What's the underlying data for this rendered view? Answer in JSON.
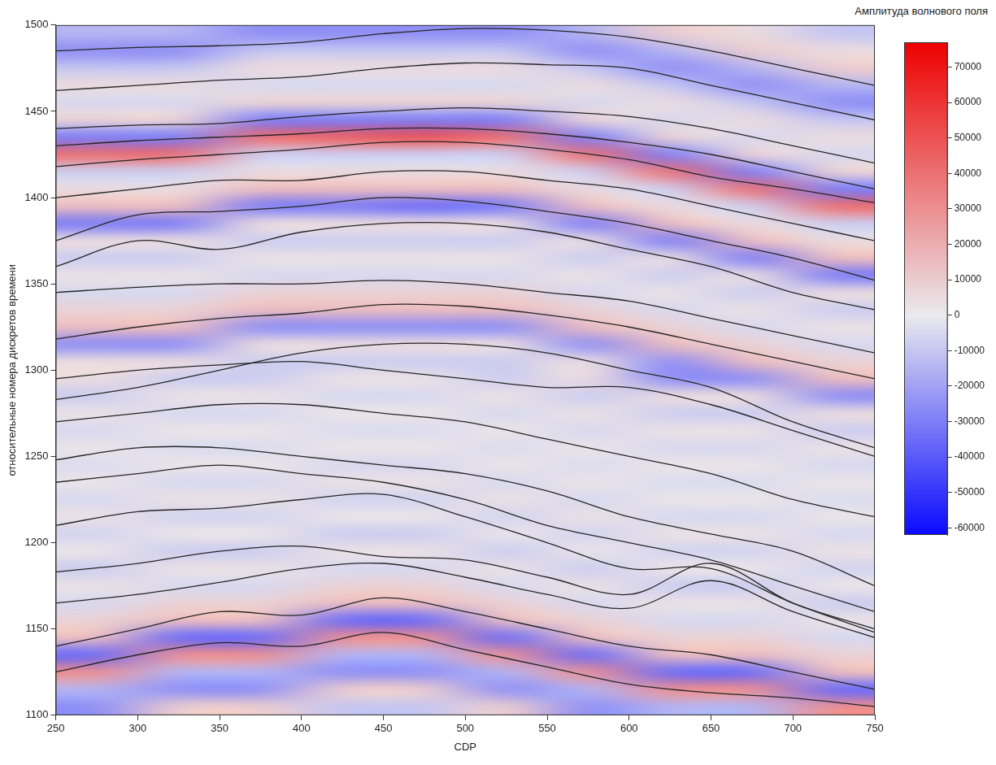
{
  "chart_data": {
    "type": "heatmap",
    "x_label": "CDP",
    "y_label": "относительные номера дискретов времени",
    "xlim": [
      250,
      750
    ],
    "xticks": [
      250,
      300,
      350,
      400,
      450,
      500,
      550,
      600,
      650,
      700,
      750
    ],
    "ylim": [
      1100,
      1500
    ],
    "yticks": [
      1100,
      1150,
      1200,
      1250,
      1300,
      1350,
      1400,
      1450,
      1500
    ],
    "grid": false,
    "cells": {
      "x_edges": [
        250,
        300,
        350,
        400,
        450,
        500,
        550,
        600,
        650,
        700,
        750
      ],
      "y_edges": [
        1100,
        1110,
        1120,
        1130,
        1140,
        1150,
        1160,
        1170,
        1180,
        1190,
        1200,
        1210,
        1220,
        1230,
        1240,
        1250,
        1260,
        1270,
        1280,
        1290,
        1300,
        1310,
        1320,
        1330,
        1340,
        1350,
        1360,
        1370,
        1380,
        1390,
        1400,
        1410,
        1420,
        1430,
        1440,
        1450,
        1460,
        1470,
        1480,
        1490,
        1500
      ],
      "values": [
        [
          -25000,
          10000,
          10000,
          -10000,
          -10000,
          10000,
          -25000,
          -15000,
          -15000,
          30000
        ],
        [
          -15000,
          -25000,
          -25000,
          10000,
          10000,
          -25000,
          -15000,
          30000,
          30000,
          -35000
        ],
        [
          30000,
          -15000,
          -15000,
          -25000,
          -25000,
          -15000,
          30000,
          -35000,
          -35000,
          15000
        ],
        [
          -35000,
          30000,
          30000,
          -15000,
          -15000,
          30000,
          -35000,
          15000,
          15000,
          8000
        ],
        [
          15000,
          -35000,
          -35000,
          30000,
          30000,
          -35000,
          15000,
          8000,
          8000,
          -5000
        ],
        [
          8000,
          15000,
          15000,
          -35000,
          -35000,
          15000,
          8000,
          -5000,
          -5000,
          3000
        ],
        [
          -5000,
          8000,
          8000,
          15000,
          15000,
          8000,
          -5000,
          3000,
          3000,
          -8000
        ],
        [
          3000,
          -5000,
          -5000,
          8000,
          8000,
          -5000,
          3000,
          -8000,
          -8000,
          2000
        ],
        [
          -8000,
          3000,
          3000,
          -5000,
          -5000,
          3000,
          -8000,
          2000,
          2000,
          -6000
        ],
        [
          2000,
          -8000,
          -8000,
          3000,
          3000,
          -8000,
          2000,
          -6000,
          -6000,
          3000
        ],
        [
          -6000,
          2000,
          2000,
          -8000,
          -8000,
          2000,
          -6000,
          3000,
          3000,
          -5000
        ],
        [
          3000,
          -6000,
          -6000,
          2000,
          2000,
          -6000,
          3000,
          -5000,
          -5000,
          2000
        ],
        [
          -5000,
          3000,
          3000,
          -6000,
          -6000,
          3000,
          -5000,
          2000,
          2000,
          -4000
        ],
        [
          2000,
          -5000,
          -5000,
          3000,
          3000,
          -5000,
          2000,
          -4000,
          -4000,
          2000
        ],
        [
          -4000,
          2000,
          2000,
          -5000,
          -5000,
          2000,
          -4000,
          2000,
          2000,
          -5000
        ],
        [
          2000,
          -4000,
          -4000,
          2000,
          2000,
          -4000,
          2000,
          -5000,
          -5000,
          3000
        ],
        [
          -5000,
          2000,
          2000,
          -4000,
          -4000,
          2000,
          -5000,
          3000,
          3000,
          -8000
        ],
        [
          3000,
          -5000,
          -5000,
          2000,
          2000,
          -5000,
          3000,
          -8000,
          -8000,
          5000
        ],
        [
          -8000,
          3000,
          3000,
          -5000,
          -5000,
          3000,
          -8000,
          5000,
          5000,
          -25000
        ],
        [
          5000,
          -8000,
          -8000,
          3000,
          3000,
          -8000,
          5000,
          -25000,
          -25000,
          15000
        ],
        [
          5000,
          5000,
          -8000,
          -8000,
          -8000,
          -8000,
          5000,
          -25000,
          15000,
          8000
        ],
        [
          -25000,
          -25000,
          5000,
          5000,
          5000,
          5000,
          -25000,
          15000,
          8000,
          -5000
        ],
        [
          15000,
          15000,
          -25000,
          -25000,
          -25000,
          -25000,
          15000,
          8000,
          -5000,
          3000
        ],
        [
          8000,
          8000,
          15000,
          15000,
          15000,
          15000,
          8000,
          -5000,
          3000,
          -8000
        ],
        [
          -5000,
          -5000,
          8000,
          8000,
          8000,
          8000,
          -5000,
          3000,
          -8000,
          5000
        ],
        [
          3000,
          3000,
          -5000,
          -5000,
          -5000,
          -5000,
          3000,
          -8000,
          5000,
          -30000
        ],
        [
          -8000,
          -8000,
          3000,
          3000,
          3000,
          3000,
          -8000,
          5000,
          -30000,
          15000
        ],
        [
          5000,
          5000,
          -8000,
          -8000,
          -8000,
          -8000,
          5000,
          -30000,
          15000,
          5000
        ],
        [
          -30000,
          -30000,
          5000,
          5000,
          5000,
          5000,
          -30000,
          15000,
          5000,
          -8000
        ],
        [
          15000,
          15000,
          -30000,
          -30000,
          -35000,
          -30000,
          15000,
          5000,
          -8000,
          40000
        ],
        [
          5000,
          5000,
          15000,
          15000,
          15000,
          15000,
          5000,
          -8000,
          40000,
          -30000
        ],
        [
          -8000,
          -8000,
          5000,
          5000,
          5000,
          5000,
          -8000,
          40000,
          -30000,
          8000
        ],
        [
          40000,
          40000,
          -8000,
          -8000,
          -8000,
          -8000,
          40000,
          -30000,
          8000,
          -5000
        ],
        [
          -30000,
          -30000,
          40000,
          45000,
          50000,
          40000,
          -30000,
          8000,
          -5000,
          5000
        ],
        [
          8000,
          8000,
          -30000,
          -30000,
          -30000,
          -30000,
          8000,
          -5000,
          5000,
          -10000
        ],
        [
          -5000,
          -5000,
          8000,
          8000,
          8000,
          8000,
          -5000,
          5000,
          -10000,
          -25000
        ],
        [
          5000,
          5000,
          -5000,
          -5000,
          -5000,
          -5000,
          5000,
          -10000,
          -25000,
          -15000
        ],
        [
          -10000,
          -10000,
          5000,
          5000,
          5000,
          5000,
          -10000,
          -25000,
          -15000,
          10000
        ],
        [
          -25000,
          -25000,
          -10000,
          -10000,
          -10000,
          -10000,
          -25000,
          -15000,
          10000,
          5000
        ],
        [
          -15000,
          -15000,
          -25000,
          -25000,
          -25000,
          -25000,
          -15000,
          10000,
          5000,
          -10000
        ]
      ]
    },
    "colorbar": {
      "title": "Амплитуда волнового поля",
      "range": [
        -62000,
        77000
      ],
      "ticks": [
        -60000,
        -50000,
        -40000,
        -30000,
        -20000,
        -10000,
        0,
        10000,
        20000,
        30000,
        40000,
        50000,
        60000,
        70000
      ]
    },
    "x": [
      250,
      300,
      350,
      400,
      450,
      500,
      550,
      600,
      650,
      700,
      750
    ],
    "series": [
      {
        "type": "line",
        "color": "#262626",
        "values": [
          1125,
          1135,
          1142,
          1140,
          1148,
          1138,
          1128,
          1118,
          1113,
          1110,
          1105
        ]
      },
      {
        "type": "line",
        "color": "#262626",
        "values": [
          1140,
          1150,
          1160,
          1158,
          1168,
          1160,
          1150,
          1140,
          1135,
          1125,
          1115
        ]
      },
      {
        "type": "line",
        "color": "#262626",
        "values": [
          1165,
          1170,
          1177,
          1185,
          1188,
          1180,
          1170,
          1162,
          1178,
          1160,
          1145
        ]
      },
      {
        "type": "line",
        "color": "#262626",
        "values": [
          1183,
          1188,
          1195,
          1198,
          1192,
          1190,
          1180,
          1170,
          1188,
          1165,
          1150
        ]
      },
      {
        "type": "line",
        "color": "#262626",
        "values": [
          1210,
          1218,
          1220,
          1225,
          1228,
          1215,
          1200,
          1185,
          1185,
          1165,
          1148
        ]
      },
      {
        "type": "line",
        "color": "#262626",
        "values": [
          1235,
          1240,
          1245,
          1240,
          1235,
          1225,
          1210,
          1200,
          1190,
          1175,
          1160
        ]
      },
      {
        "type": "line",
        "color": "#262626",
        "values": [
          1248,
          1255,
          1255,
          1250,
          1245,
          1240,
          1230,
          1215,
          1205,
          1195,
          1175
        ]
      },
      {
        "type": "line",
        "color": "#262626",
        "values": [
          1270,
          1275,
          1280,
          1280,
          1275,
          1270,
          1260,
          1250,
          1240,
          1225,
          1215
        ]
      },
      {
        "type": "line",
        "color": "#262626",
        "values": [
          1283,
          1290,
          1300,
          1310,
          1315,
          1315,
          1310,
          1300,
          1290,
          1270,
          1255
        ]
      },
      {
        "type": "line",
        "color": "#262626",
        "values": [
          1295,
          1300,
          1303,
          1305,
          1300,
          1295,
          1290,
          1290,
          1280,
          1265,
          1250
        ]
      },
      {
        "type": "line",
        "color": "#262626",
        "values": [
          1318,
          1325,
          1330,
          1333,
          1338,
          1337,
          1332,
          1325,
          1315,
          1305,
          1295
        ]
      },
      {
        "type": "line",
        "color": "#262626",
        "values": [
          1345,
          1348,
          1350,
          1350,
          1352,
          1350,
          1345,
          1340,
          1330,
          1320,
          1310
        ]
      },
      {
        "type": "line",
        "color": "#262626",
        "values": [
          1360,
          1375,
          1370,
          1380,
          1385,
          1385,
          1380,
          1370,
          1360,
          1345,
          1335
        ]
      },
      {
        "type": "line",
        "color": "#262626",
        "values": [
          1375,
          1390,
          1392,
          1395,
          1400,
          1398,
          1392,
          1385,
          1375,
          1365,
          1352
        ]
      },
      {
        "type": "line",
        "color": "#262626",
        "values": [
          1400,
          1405,
          1410,
          1410,
          1415,
          1415,
          1410,
          1405,
          1395,
          1385,
          1375
        ]
      },
      {
        "type": "line",
        "color": "#262626",
        "values": [
          1418,
          1422,
          1425,
          1428,
          1432,
          1432,
          1428,
          1422,
          1412,
          1405,
          1397
        ]
      },
      {
        "type": "line",
        "color": "#262626",
        "values": [
          1430,
          1433,
          1435,
          1437,
          1440,
          1440,
          1437,
          1432,
          1425,
          1415,
          1405
        ]
      },
      {
        "type": "line",
        "color": "#262626",
        "values": [
          1440,
          1442,
          1443,
          1447,
          1450,
          1452,
          1450,
          1447,
          1440,
          1430,
          1420
        ]
      },
      {
        "type": "line",
        "color": "#262626",
        "values": [
          1462,
          1465,
          1468,
          1470,
          1475,
          1478,
          1477,
          1475,
          1465,
          1455,
          1445
        ]
      },
      {
        "type": "line",
        "color": "#262626",
        "values": [
          1485,
          1487,
          1488,
          1490,
          1495,
          1498,
          1497,
          1493,
          1485,
          1475,
          1465
        ]
      }
    ]
  }
}
